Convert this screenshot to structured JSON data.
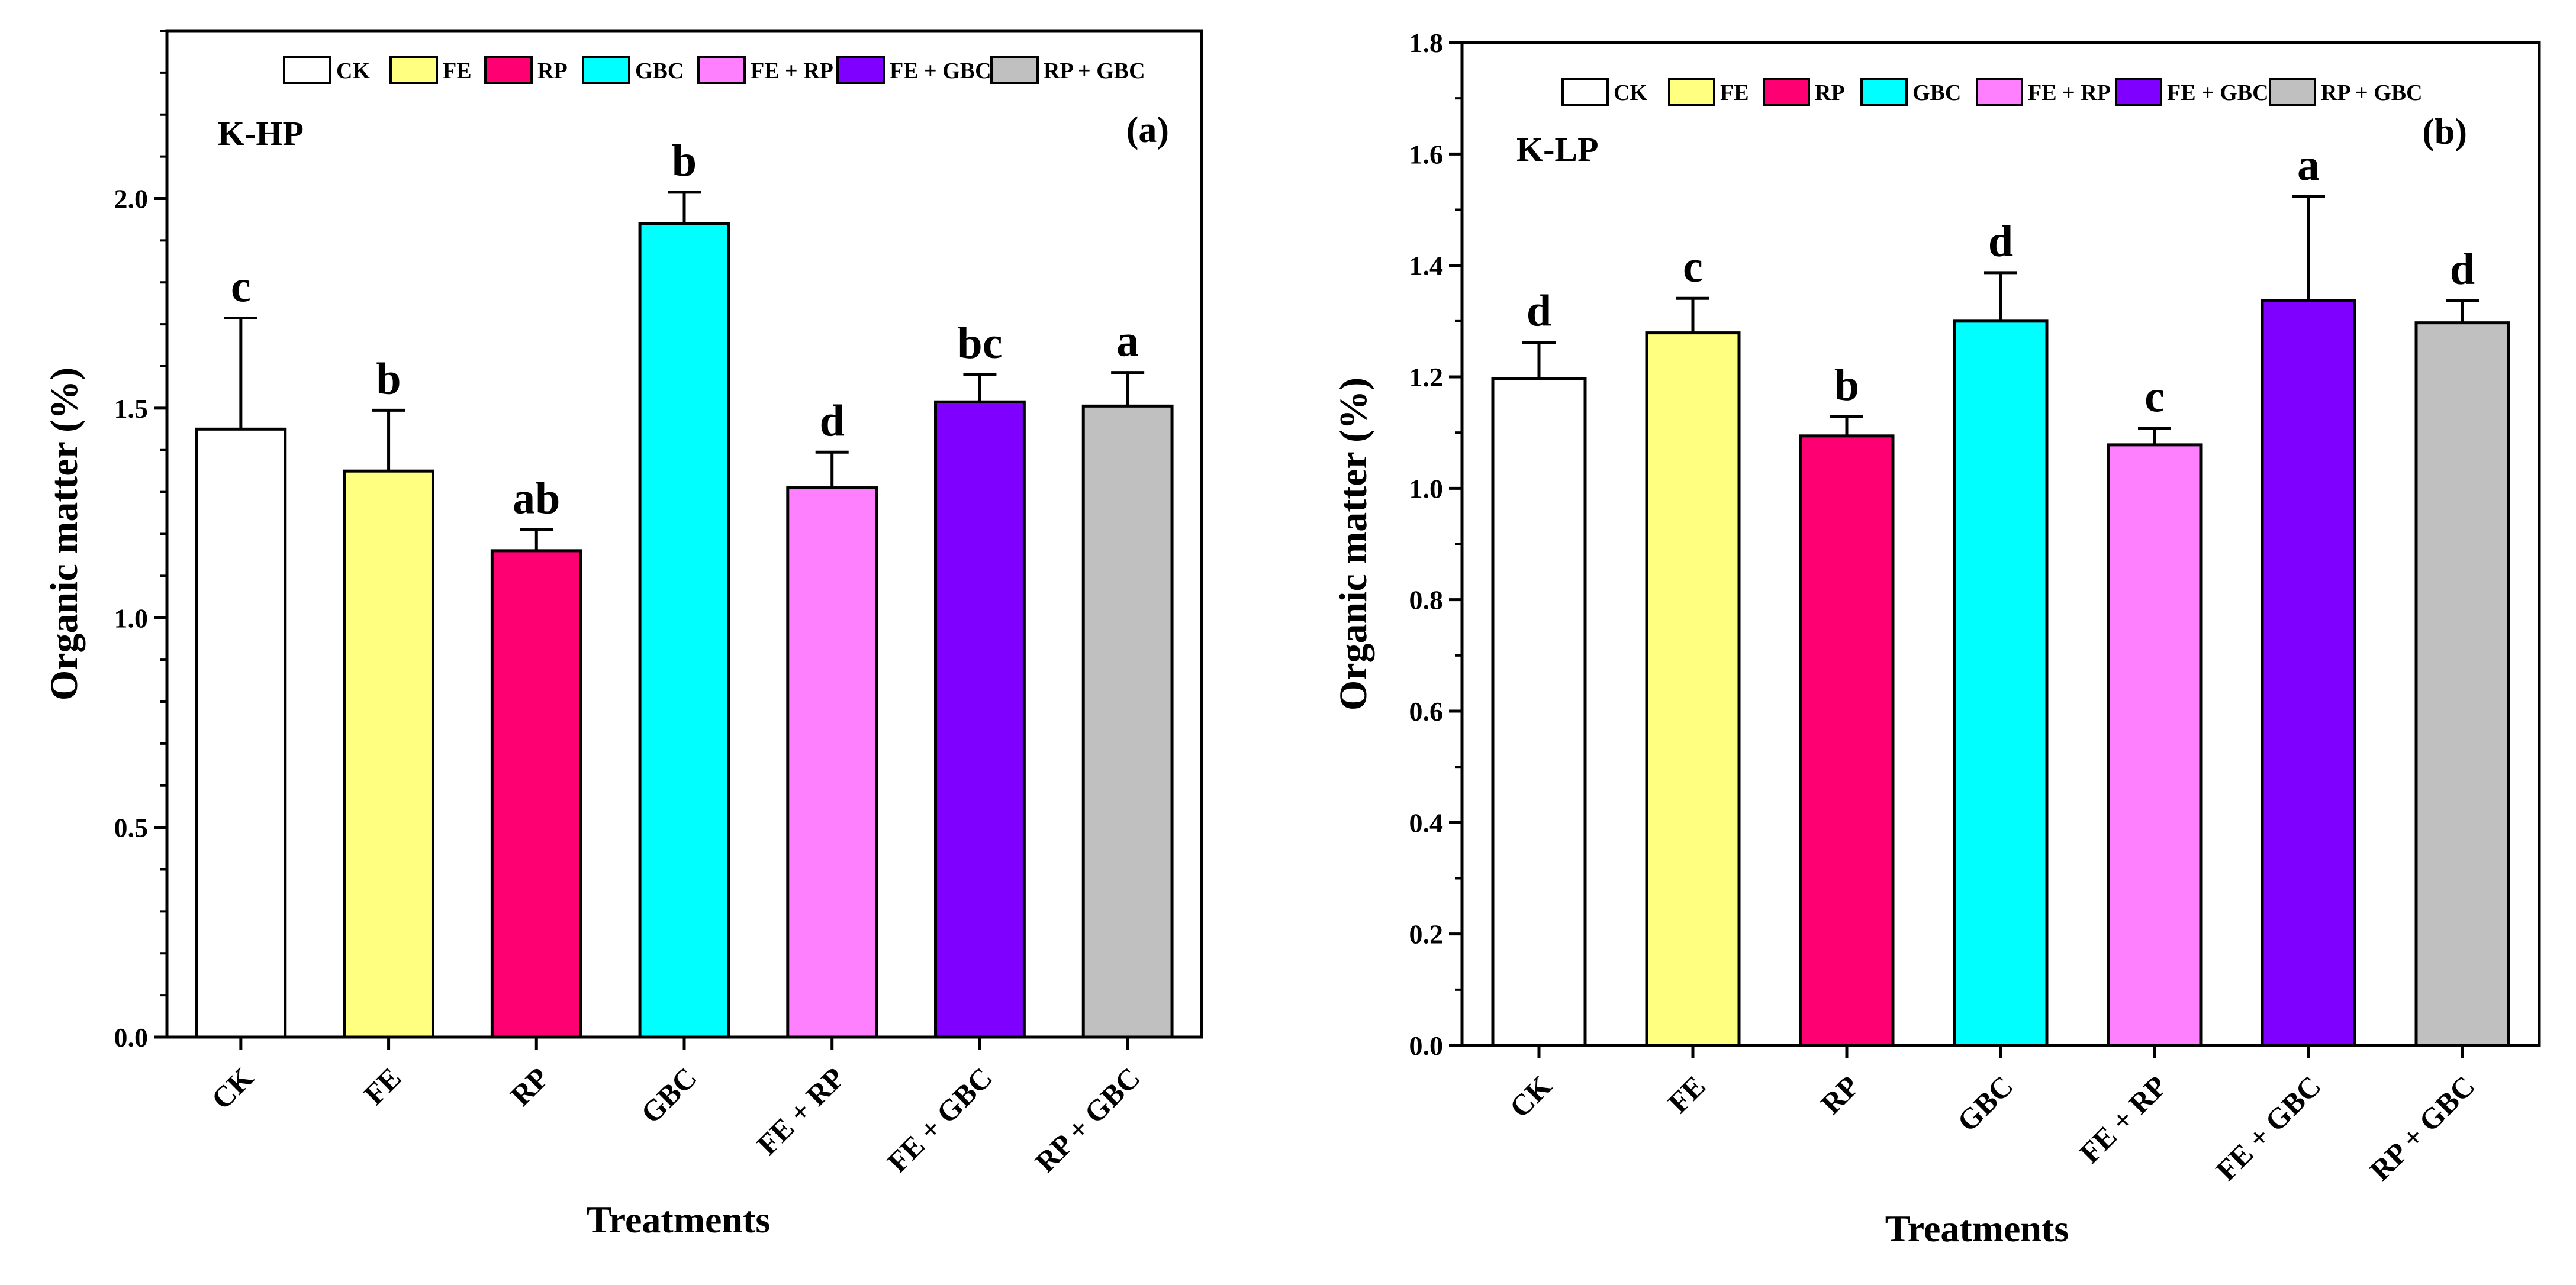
{
  "chart_data": [
    {
      "type": "bar",
      "panel_label": "(a)",
      "soil_label": "K-HP",
      "categories": [
        "CK",
        "FE",
        "RP",
        "GBC",
        "FE + RP",
        "FE + GBC",
        "RP + GBC"
      ],
      "values": [
        1.45,
        1.35,
        1.16,
        1.94,
        1.31,
        1.515,
        1.505
      ],
      "errors": [
        0.265,
        0.145,
        0.05,
        0.075,
        0.085,
        0.065,
        0.08
      ],
      "letters": [
        "c",
        "b",
        "ab",
        "b",
        "d",
        "bc",
        "a"
      ],
      "colors": [
        "#ffffff",
        "#ffff80",
        "#ff0073",
        "#00ffff",
        "#ff80ff",
        "#8000ff",
        "#c0c0c0"
      ],
      "xlabel": "Treatments",
      "ylabel": "Organic matter (%)",
      "ylim": [
        0,
        2.4
      ],
      "yticks": [
        0.0,
        0.5,
        1.0,
        1.5,
        2.0
      ],
      "ytick_labels": [
        "0.0",
        "0.5",
        "1.0",
        "1.5",
        "2.0"
      ],
      "legend": [
        "CK",
        "FE",
        "RP",
        "GBC",
        "FE + RP",
        "FE + GBC",
        "RP + GBC"
      ],
      "legend_position": "top",
      "grid": false
    },
    {
      "type": "bar",
      "panel_label": "(b)",
      "soil_label": "K-LP",
      "categories": [
        "CK",
        "FE",
        "RP",
        "GBC",
        "FE + RP",
        "FE + GBC",
        "RP + GBC"
      ],
      "values": [
        1.197,
        1.279,
        1.094,
        1.3,
        1.078,
        1.337,
        1.297
      ],
      "errors": [
        0.065,
        0.062,
        0.035,
        0.087,
        0.03,
        0.187,
        0.04
      ],
      "letters": [
        "d",
        "c",
        "b",
        "d",
        "c",
        "a",
        "d"
      ],
      "colors": [
        "#ffffff",
        "#ffff80",
        "#ff0073",
        "#00ffff",
        "#ff80ff",
        "#8000ff",
        "#c0c0c0"
      ],
      "xlabel": "Treatments",
      "ylabel": "Organic matter (%)",
      "ylim": [
        0,
        1.8
      ],
      "yticks": [
        0.0,
        0.2,
        0.4,
        0.6,
        0.8,
        1.0,
        1.2,
        1.4,
        1.6,
        1.8
      ],
      "ytick_labels": [
        "0.0",
        "0.2",
        "0.4",
        "0.6",
        "0.8",
        "1.0",
        "1.2",
        "1.4",
        "1.6",
        "1.8"
      ],
      "legend": [
        "CK",
        "FE",
        "RP",
        "GBC",
        "FE + RP",
        "FE + GBC",
        "RP + GBC"
      ],
      "legend_position": "top",
      "grid": false
    }
  ]
}
